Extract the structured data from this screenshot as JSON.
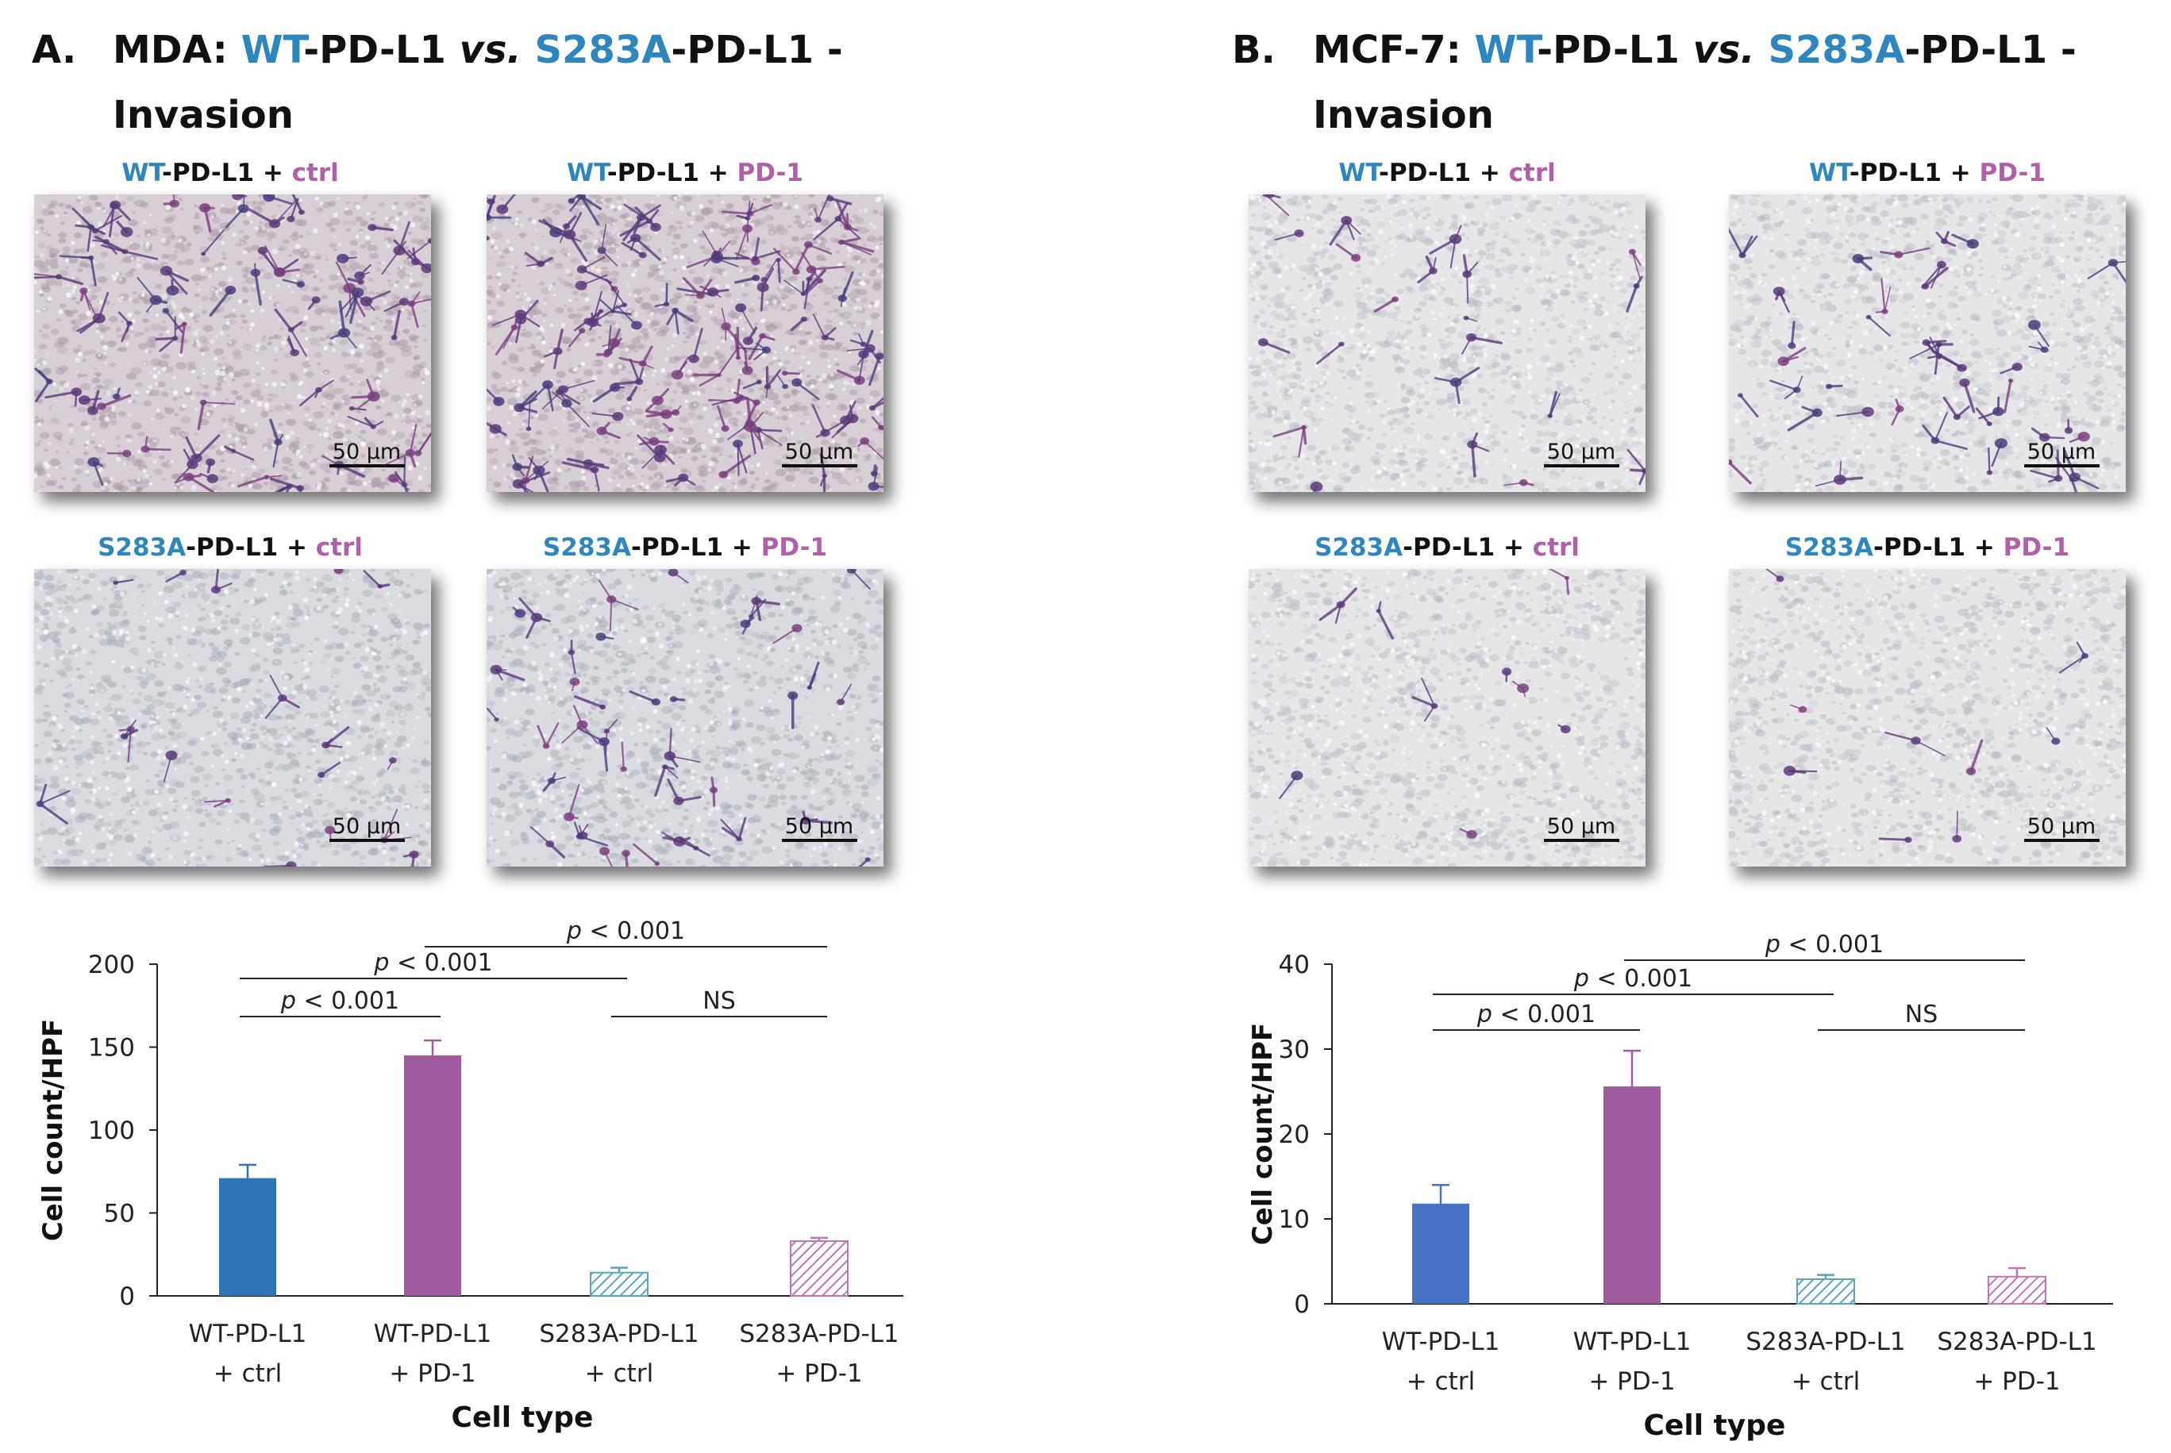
{
  "colors": {
    "wt": "#2e86c1",
    "pd1": "#b05fa8",
    "bar_wt_mda": "#2e75b6",
    "bar_wt_mcf": "#4472c4",
    "bar_pd1": "#a05a9e",
    "hatch_s283a_ctrl": "#5aa4bd",
    "hatch_s283a_pd1": "#c074b6"
  },
  "panels": [
    {
      "letter": "A.",
      "title_prefix": "MDA: ",
      "title_wt": "WT",
      "title_mid": "-PD-L1 ",
      "title_vs": "vs.",
      "title_space": " ",
      "title_mut": "S283A",
      "title_suffix": "-PD-L1 -",
      "title_line2": "Invasion",
      "micrographs": [
        {
          "label_a": "WT",
          "label_b": "-PD-L1 + ",
          "label_c": "ctrl",
          "scale": "50 µm"
        },
        {
          "label_a": "WT",
          "label_b": "-PD-L1 + ",
          "label_c": "PD-1",
          "scale": "50 µm"
        },
        {
          "label_a": "S283A",
          "label_b": "-PD-L1 + ",
          "label_c": "ctrl",
          "scale": "50 µm"
        },
        {
          "label_a": "S283A",
          "label_b": "-PD-L1 + ",
          "label_c": "PD-1",
          "scale": "50 µm"
        }
      ]
    },
    {
      "letter": "B.",
      "title_prefix": "MCF-7: ",
      "title_wt": "WT",
      "title_mid": "-PD-L1 ",
      "title_vs": "vs.",
      "title_space": " ",
      "title_mut": "S283A",
      "title_suffix": "-PD-L1 -",
      "title_line2": "Invasion",
      "micrographs": [
        {
          "label_a": "WT",
          "label_b": "-PD-L1 + ",
          "label_c": "ctrl",
          "scale": "50 µm"
        },
        {
          "label_a": "WT",
          "label_b": "-PD-L1 + ",
          "label_c": "PD-1",
          "scale": "50 µm"
        },
        {
          "label_a": "S283A",
          "label_b": "-PD-L1 + ",
          "label_c": "ctrl",
          "scale": "50 µm"
        },
        {
          "label_a": "S283A",
          "label_b": "-PD-L1 + ",
          "label_c": "PD-1",
          "scale": "50 µm"
        }
      ]
    }
  ],
  "chart_data": [
    {
      "type": "bar",
      "xlabel": "Cell type",
      "ylabel": "Cell count/HPF",
      "ylim": [
        0,
        200
      ],
      "yticks": [
        0,
        50,
        100,
        150,
        200
      ],
      "categories": [
        [
          "WT-PD-L1",
          "+ ctrl"
        ],
        [
          "WT-PD-L1",
          "+ PD-1"
        ],
        [
          "S283A-PD-L1",
          "+ ctrl"
        ],
        [
          "S283A-PD-L1",
          "+ PD-1"
        ]
      ],
      "values": [
        71,
        145,
        14,
        33
      ],
      "errors": [
        8,
        9,
        3,
        2
      ],
      "fills": [
        "solid-wt",
        "solid-pd1",
        "hatch-ctrl",
        "hatch-pd1"
      ],
      "annotations": [
        {
          "from": 0,
          "to": 1,
          "label_p": "p",
          "label_rest": " < 0.001",
          "level": 0
        },
        {
          "from": 0,
          "to": 2,
          "label_p": "p",
          "label_rest": " < 0.001",
          "level": 1
        },
        {
          "from": 1,
          "to": 3,
          "label_p": "p",
          "label_rest": " < 0.001",
          "level": 2
        },
        {
          "from": 2,
          "to": 3,
          "label_p": "",
          "label_rest": "NS",
          "level": 0
        }
      ],
      "grid": false
    },
    {
      "type": "bar",
      "xlabel": "Cell type",
      "ylabel": "Cell count/HPF",
      "ylim": [
        0,
        40
      ],
      "yticks": [
        0,
        10,
        20,
        30,
        40
      ],
      "categories": [
        [
          "WT-PD-L1",
          "+ ctrl"
        ],
        [
          "WT-PD-L1",
          "+ PD-1"
        ],
        [
          "S283A-PD-L1",
          "+ ctrl"
        ],
        [
          "S283A-PD-L1",
          "+ PD-1"
        ]
      ],
      "values": [
        11.8,
        25.6,
        2.9,
        3.2
      ],
      "errors": [
        2.2,
        4.2,
        0.5,
        1.0
      ],
      "fills": [
        "solid-wt",
        "solid-pd1",
        "hatch-ctrl",
        "hatch-pd1"
      ],
      "annotations": [
        {
          "from": 0,
          "to": 1,
          "label_p": "p",
          "label_rest": " < 0.001",
          "level": 0
        },
        {
          "from": 0,
          "to": 2,
          "label_p": "p",
          "label_rest": " < 0.001",
          "level": 1
        },
        {
          "from": 1,
          "to": 3,
          "label_p": "p",
          "label_rest": " < 0.001",
          "level": 2
        },
        {
          "from": 2,
          "to": 3,
          "label_p": "",
          "label_rest": "NS",
          "level": 0
        }
      ],
      "grid": false
    }
  ]
}
